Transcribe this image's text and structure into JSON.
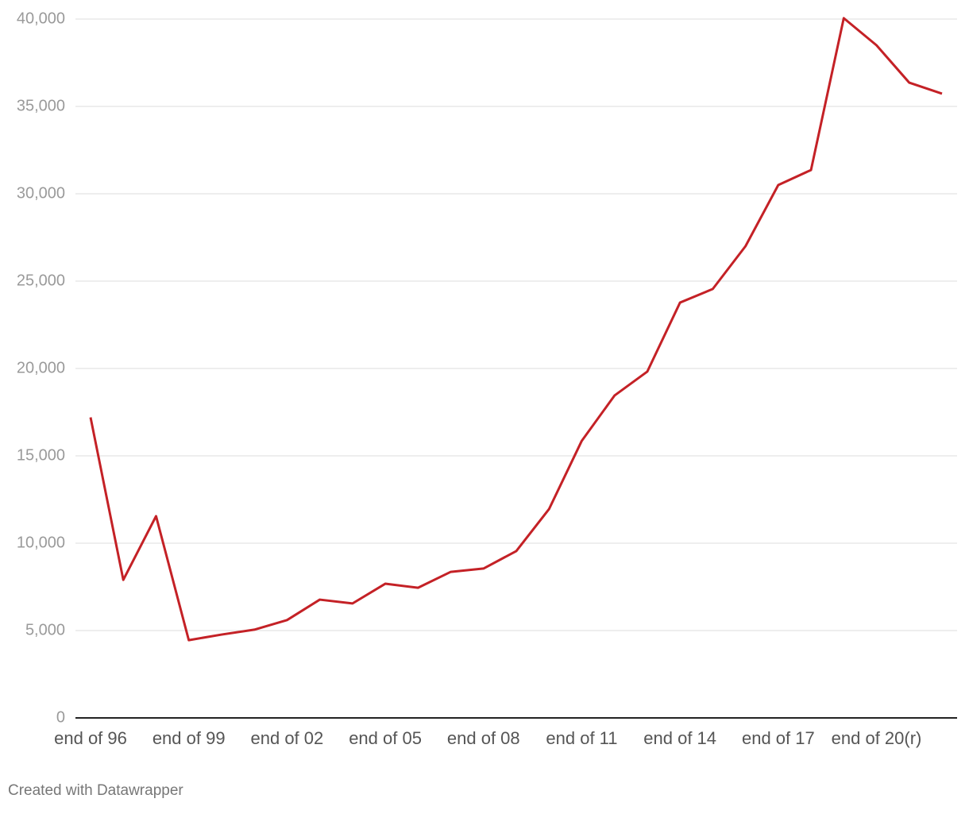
{
  "chart_data": {
    "type": "line",
    "categories": [
      "end of 96",
      null,
      null,
      "end of 99",
      null,
      null,
      "end of 02",
      null,
      null,
      "end of 05",
      null,
      null,
      "end of 08",
      null,
      null,
      "end of 11",
      null,
      null,
      "end of 14",
      null,
      null,
      "end of 17",
      null,
      null,
      "end of 20(r)",
      null,
      null
    ],
    "series": [
      {
        "color": "#c42126",
        "values": [
          17200,
          7900,
          11550,
          4450,
          4770,
          5050,
          5600,
          6770,
          6550,
          7680,
          7450,
          8360,
          8550,
          9550,
          11950,
          15860,
          18450,
          19820,
          23770,
          24550,
          27000,
          30500,
          31360,
          40050,
          38500,
          36360,
          35730
        ]
      }
    ],
    "ylim": [
      0,
      40000
    ],
    "yticks": [
      0,
      {
        "value": 5000,
        "label": "5,000"
      },
      {
        "value": 10000,
        "label": "10,000"
      },
      {
        "value": 15000,
        "label": "15,000"
      },
      {
        "value": 20000,
        "label": "20,000"
      },
      {
        "value": 25000,
        "label": "25,000"
      },
      {
        "value": 30000,
        "label": "30,000"
      },
      {
        "value": 35000,
        "label": "35,000"
      },
      {
        "value": 40000,
        "label": "40,000"
      }
    ],
    "grid": true
  },
  "footer": "Created with Datawrapper"
}
